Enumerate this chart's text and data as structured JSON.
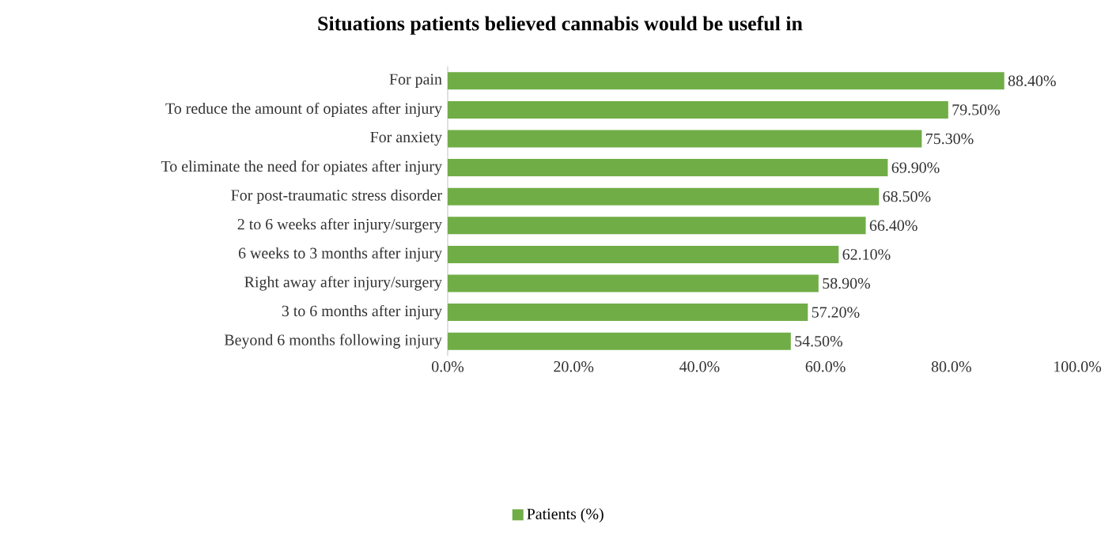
{
  "chart_data": {
    "type": "bar",
    "orientation": "horizontal",
    "title": "Situations patients believed cannabis would be useful in",
    "categories": [
      "For pain",
      "To reduce the amount of opiates after injury",
      "For anxiety",
      "To eliminate the need for opiates after injury",
      "For post-traumatic stress disorder",
      "2 to 6 weeks after injury/surgery",
      "6 weeks to 3 months after injury",
      "Right away after injury/surgery",
      "3 to 6 months after injury",
      "Beyond 6 months following injury"
    ],
    "series": [
      {
        "name": "Patients (%)",
        "color": "#70ad47",
        "values": [
          88.4,
          79.5,
          75.3,
          69.9,
          68.5,
          66.4,
          62.1,
          58.9,
          57.2,
          54.5
        ],
        "value_labels": [
          "88.40%",
          "79.50%",
          "75.30%",
          "69.90%",
          "68.50%",
          "66.40%",
          "62.10%",
          "58.90%",
          "57.20%",
          "54.50%"
        ]
      }
    ],
    "xlim": [
      0,
      100
    ],
    "xticks": [
      {
        "value": 0,
        "label": "0.0%"
      },
      {
        "value": 20,
        "label": "20.0%"
      },
      {
        "value": 40,
        "label": "40.0%"
      },
      {
        "value": 60,
        "label": "60.0%"
      },
      {
        "value": 80,
        "label": "80.0%"
      },
      {
        "value": 100,
        "label": "100.0%"
      }
    ],
    "legend": "bottom",
    "grid": false
  }
}
